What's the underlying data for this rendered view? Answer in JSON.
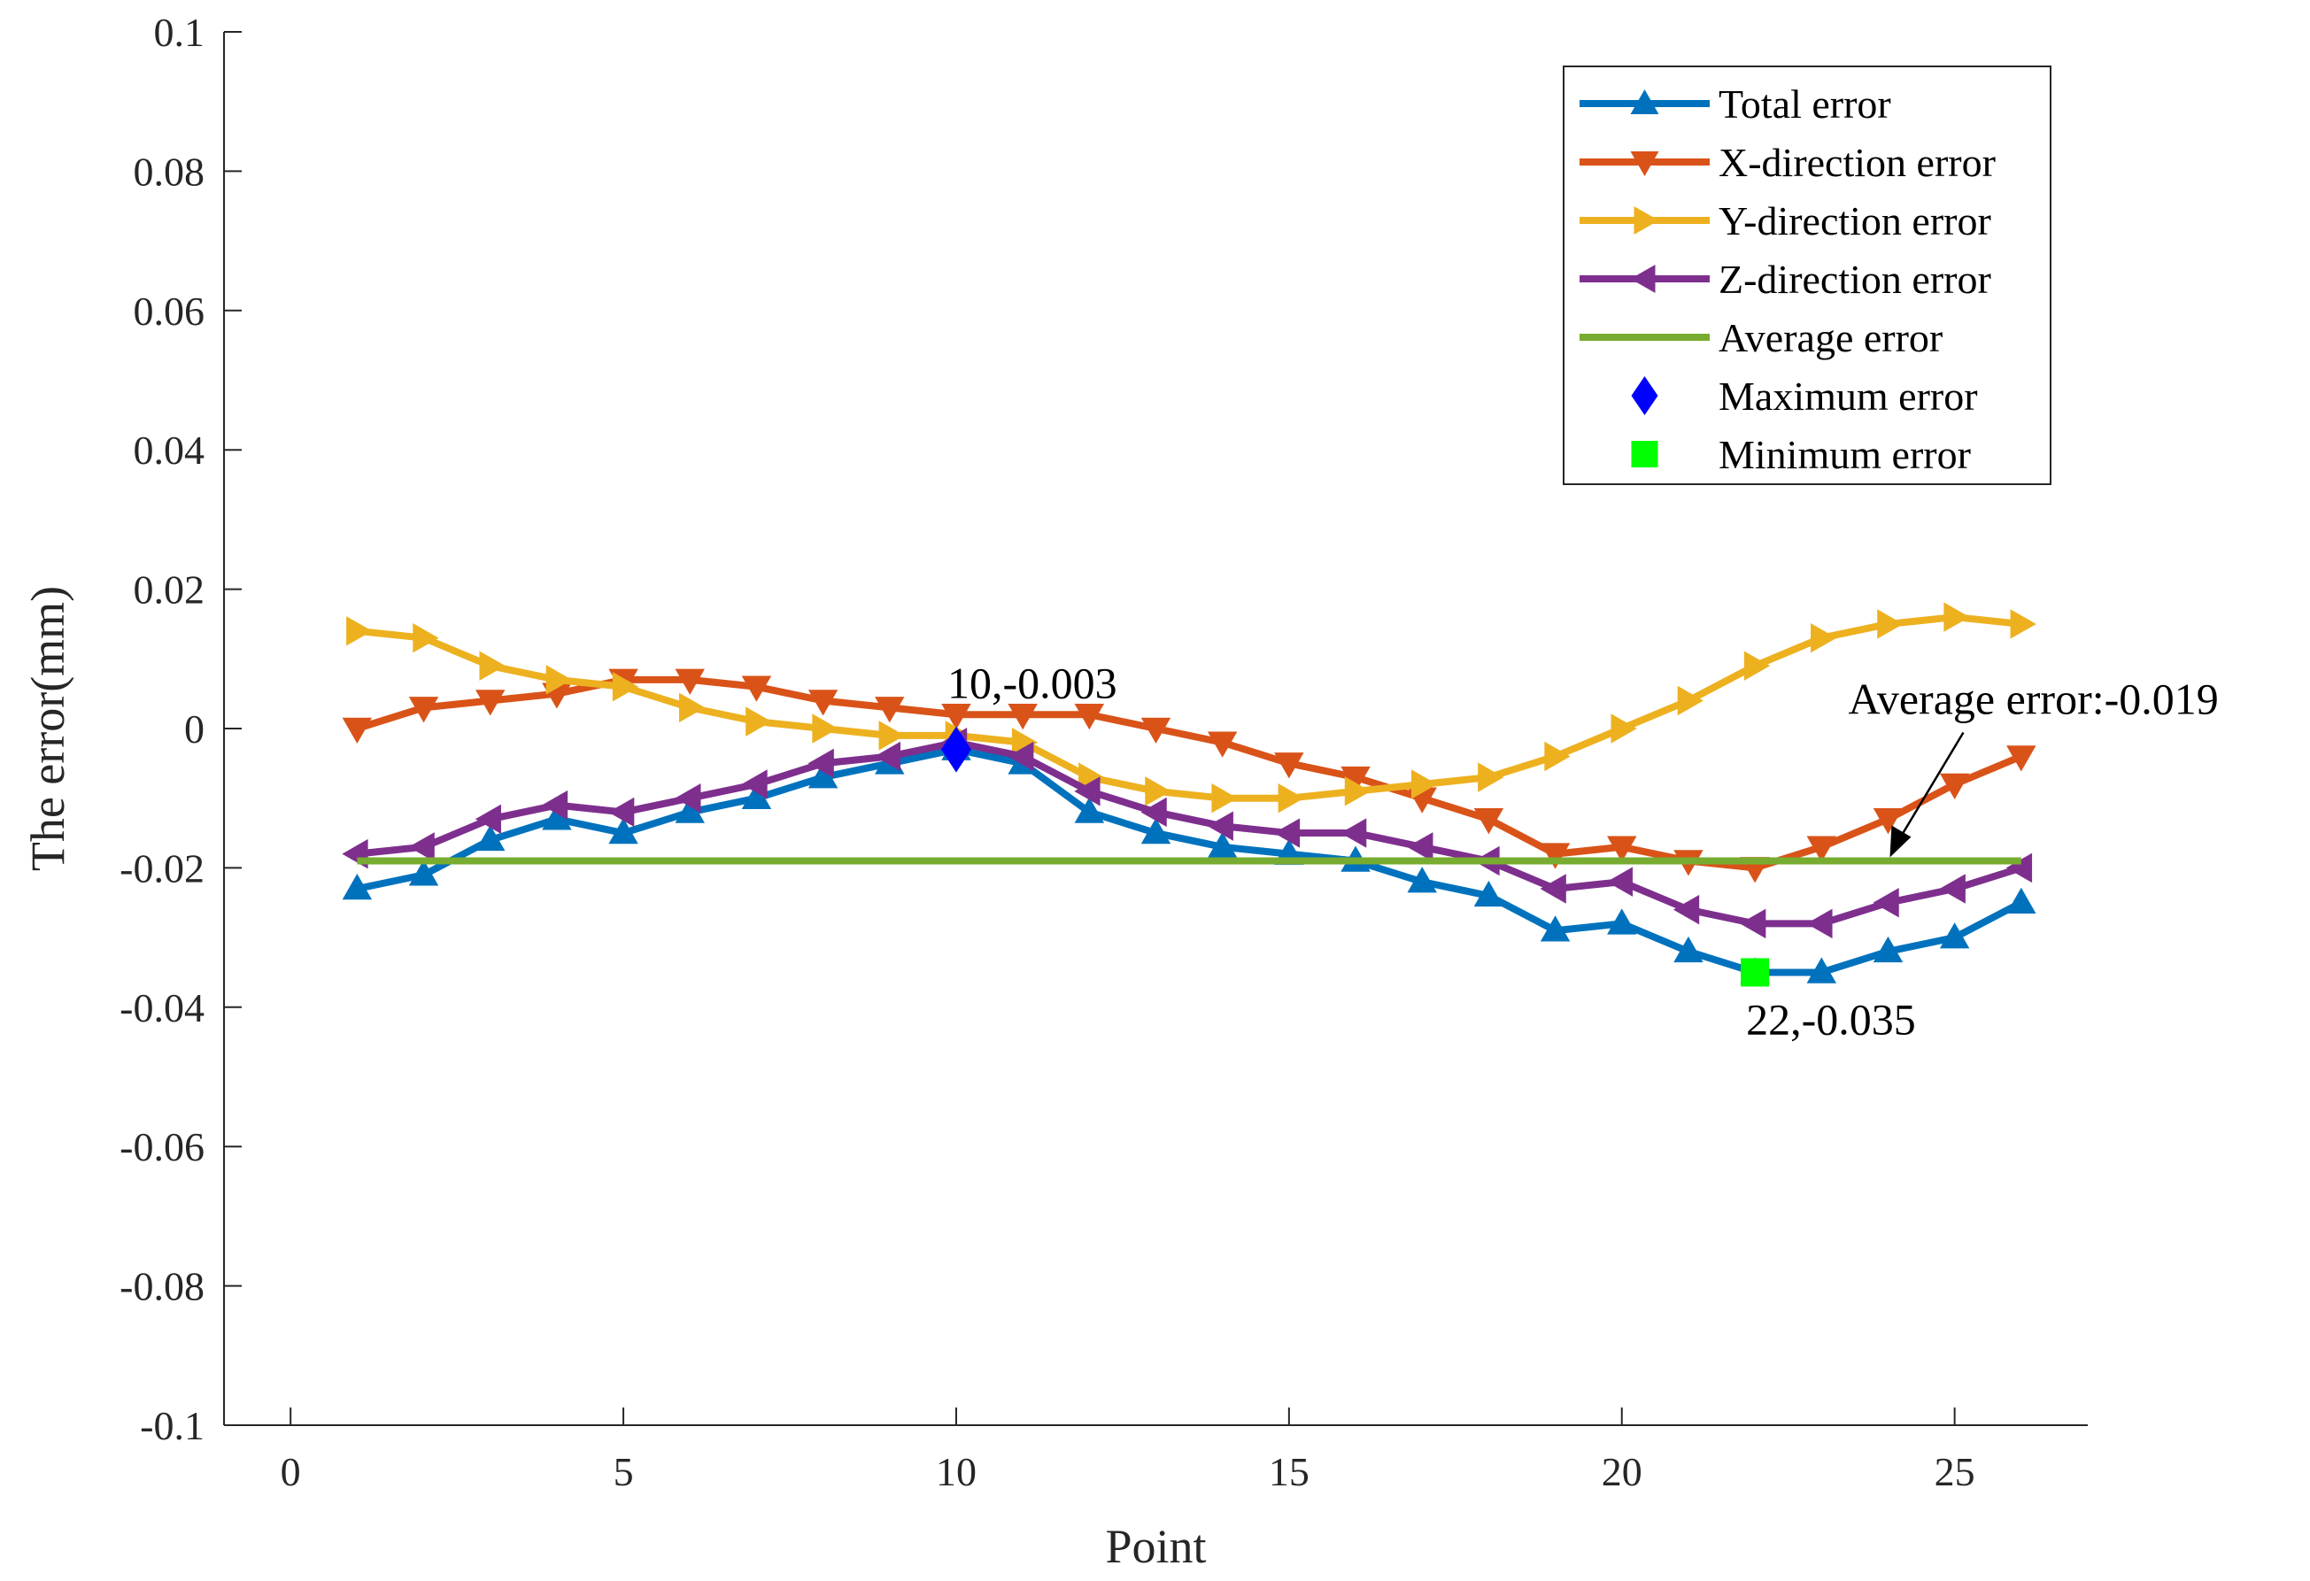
{
  "chart_data": {
    "type": "line",
    "title": "",
    "xlabel": "Point",
    "ylabel": "The error(mm)",
    "xlim": [
      -1,
      27
    ],
    "ylim": [
      -0.1,
      0.1
    ],
    "xticks": [
      0,
      5,
      10,
      15,
      20,
      25
    ],
    "xtick_labels": [
      "0",
      "5",
      "10",
      "15",
      "20",
      "25"
    ],
    "yticks": [
      -0.1,
      -0.08,
      -0.06,
      -0.04,
      -0.02,
      0,
      0.02,
      0.04,
      0.06,
      0.08,
      0.1
    ],
    "ytick_labels": [
      "-0.1",
      "-0.08",
      "-0.06",
      "-0.04",
      "-0.02",
      "0",
      "0.02",
      "0.04",
      "0.06",
      "0.08",
      "0.1"
    ],
    "grid": false,
    "legend_position": "top-right",
    "x": [
      1,
      2,
      3,
      4,
      5,
      6,
      7,
      8,
      9,
      10,
      11,
      12,
      13,
      14,
      15,
      16,
      17,
      18,
      19,
      20,
      21,
      22,
      23,
      24,
      25,
      26
    ],
    "series": [
      {
        "name": "Total error",
        "color": "#0072BD",
        "marker": "triangle-up",
        "values": [
          -0.023,
          -0.021,
          -0.016,
          -0.013,
          -0.015,
          -0.012,
          -0.01,
          -0.007,
          -0.005,
          -0.003,
          -0.005,
          -0.012,
          -0.015,
          -0.017,
          -0.018,
          -0.019,
          -0.022,
          -0.024,
          -0.029,
          -0.028,
          -0.032,
          -0.035,
          -0.035,
          -0.032,
          -0.03,
          -0.025
        ]
      },
      {
        "name": "X-direction error",
        "color": "#D95319",
        "marker": "triangle-down",
        "values": [
          0.0,
          0.003,
          0.004,
          0.005,
          0.007,
          0.007,
          0.006,
          0.004,
          0.003,
          0.002,
          0.002,
          0.002,
          0.0,
          -0.002,
          -0.005,
          -0.007,
          -0.01,
          -0.013,
          -0.018,
          -0.017,
          -0.019,
          -0.02,
          -0.017,
          -0.013,
          -0.008,
          -0.004
        ]
      },
      {
        "name": "Y-direction error",
        "color": "#EDB120",
        "marker": "triangle-right",
        "values": [
          0.014,
          0.013,
          0.009,
          0.007,
          0.006,
          0.003,
          0.001,
          0.0,
          -0.001,
          -0.001,
          -0.002,
          -0.007,
          -0.009,
          -0.01,
          -0.01,
          -0.009,
          -0.008,
          -0.007,
          -0.004,
          0.0,
          0.004,
          0.009,
          0.013,
          0.015,
          0.016,
          0.015
        ]
      },
      {
        "name": "Z-direction error",
        "color": "#7E2F8E",
        "marker": "triangle-left",
        "values": [
          -0.018,
          -0.017,
          -0.013,
          -0.011,
          -0.012,
          -0.01,
          -0.008,
          -0.005,
          -0.004,
          -0.002,
          -0.004,
          -0.009,
          -0.012,
          -0.014,
          -0.015,
          -0.015,
          -0.017,
          -0.019,
          -0.023,
          -0.022,
          -0.026,
          -0.028,
          -0.028,
          -0.025,
          -0.023,
          -0.02
        ]
      },
      {
        "name": "Average error",
        "color": "#77AC30",
        "marker": "none",
        "x_range": [
          1,
          26
        ],
        "value": -0.019
      },
      {
        "name": "Maximum error",
        "color": "#0000FF",
        "marker": "diamond",
        "point": [
          10,
          -0.003
        ]
      },
      {
        "name": "Minimum error",
        "color": "#00FF00",
        "marker": "square",
        "point": [
          22,
          -0.035
        ]
      }
    ],
    "annotations": [
      {
        "text": "10,-0.003",
        "x": 10,
        "y": -0.003
      },
      {
        "text": "22,-0.035",
        "x": 22,
        "y": -0.035
      },
      {
        "text": "Average error:-0.019",
        "x": 24,
        "y": -0.019,
        "arrow": true
      }
    ]
  }
}
